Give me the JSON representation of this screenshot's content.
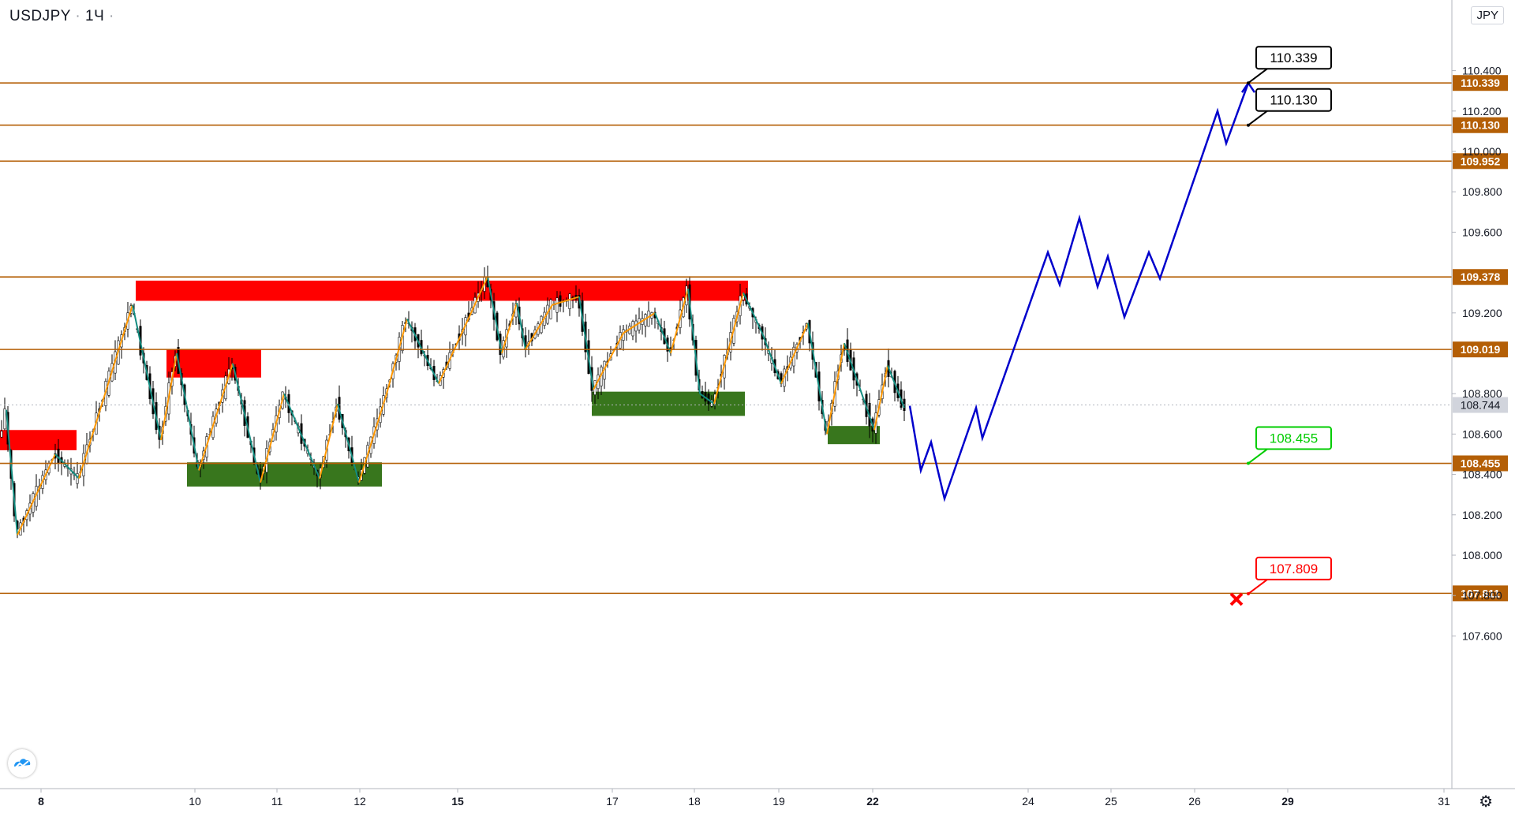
{
  "header": {
    "symbol": "USDJPY",
    "interval": "1Ч",
    "currency": "JPY"
  },
  "chart_data": {
    "type": "candlestick",
    "symbol": "USDJPY",
    "yaxis": {
      "ticks": [
        "107.600",
        "107.800",
        "108.000",
        "108.200",
        "108.400",
        "108.600",
        "108.800",
        "109.200",
        "109.600",
        "109.800",
        "110.000",
        "110.200",
        "110.400"
      ],
      "ylim": [
        107.45,
        110.55
      ]
    },
    "xaxis": {
      "ticks": [
        {
          "label": "8",
          "bold": true
        },
        {
          "label": "10",
          "bold": false
        },
        {
          "label": "11",
          "bold": false
        },
        {
          "label": "12",
          "bold": false
        },
        {
          "label": "15",
          "bold": true
        },
        {
          "label": "17",
          "bold": false
        },
        {
          "label": "18",
          "bold": false
        },
        {
          "label": "19",
          "bold": false
        },
        {
          "label": "22",
          "bold": true
        },
        {
          "label": "24",
          "bold": false
        },
        {
          "label": "25",
          "bold": false
        },
        {
          "label": "26",
          "bold": false
        },
        {
          "label": "29",
          "bold": true
        },
        {
          "label": "31",
          "bold": false
        }
      ]
    },
    "current_price": {
      "label": "108.744",
      "value": 108.744
    },
    "horizontal_levels": [
      {
        "label": "110.339",
        "value": 110.339
      },
      {
        "label": "110.130",
        "value": 110.13
      },
      {
        "label": "109.952",
        "value": 109.952
      },
      {
        "label": "109.378",
        "value": 109.378
      },
      {
        "label": "109.019",
        "value": 109.019
      },
      {
        "label": "108.455",
        "value": 108.455
      },
      {
        "label": "107.811",
        "value": 107.811
      }
    ],
    "level_color": "#b45f06",
    "callouts": [
      {
        "label": "110.339",
        "value": 110.339,
        "type": "target",
        "color": "#000000"
      },
      {
        "label": "110.130",
        "value": 110.13,
        "type": "target",
        "color": "#000000"
      },
      {
        "label": "108.455",
        "value": 108.455,
        "type": "entry",
        "color": "#00cc00"
      },
      {
        "label": "107.809",
        "value": 107.809,
        "type": "stop",
        "color": "#ff0000"
      }
    ],
    "supply_zones": [
      {
        "x_from": "Apr 7",
        "x_to": "Apr 8",
        "y_from": 108.52,
        "y_to": 108.62
      },
      {
        "x_from": "Apr 9",
        "x_to": "Apr 15",
        "y_from": 109.26,
        "y_to": 109.36
      },
      {
        "x_from": "Apr 9",
        "x_to": "Apr 10",
        "y_from": 108.88,
        "y_to": 109.02
      }
    ],
    "demand_zones": [
      {
        "x_from": "Apr 10",
        "x_to": "Apr 12",
        "y_from": 108.34,
        "y_to": 108.46
      },
      {
        "x_from": "Apr 16",
        "x_to": "Apr 18",
        "y_from": 108.69,
        "y_to": 108.81
      },
      {
        "x_from": "Apr 19",
        "x_to": "Apr 22",
        "y_from": 108.55,
        "y_to": 108.64
      }
    ],
    "zone_colors": {
      "supply": "#ff0000",
      "demand": "#38761d"
    },
    "projection_path": [
      108.74,
      108.42,
      108.56,
      108.28,
      108.73,
      108.58,
      109.5,
      109.34,
      109.67,
      109.33,
      109.48,
      109.18,
      109.5,
      109.37,
      110.2,
      110.04,
      110.339
    ],
    "projection_color": "#0000cc"
  }
}
